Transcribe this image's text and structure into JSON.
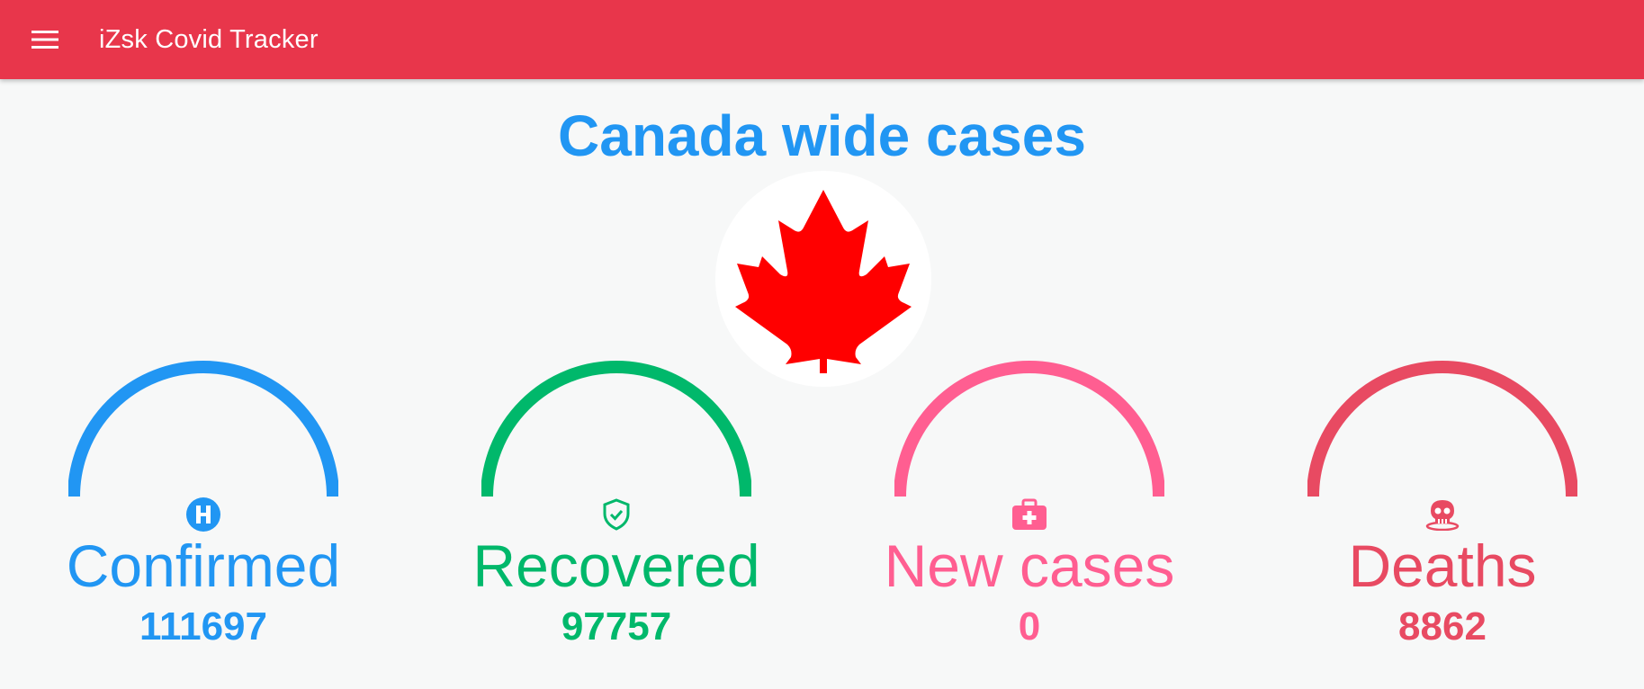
{
  "appbar": {
    "title": "iZsk Covid Tracker",
    "menu_icon": "hamburger-menu-icon",
    "color": "#e8364b"
  },
  "page": {
    "title": "Canada wide cases",
    "flag_icon": "canada-maple-leaf-icon"
  },
  "stats": [
    {
      "label": "Confirmed",
      "value": "111697",
      "icon": "hospital-icon",
      "color": "#2196f3"
    },
    {
      "label": "Recovered",
      "value": "97757",
      "icon": "shield-check-icon",
      "color": "#00b86b"
    },
    {
      "label": "New cases",
      "value": "0",
      "icon": "medical-kit-icon",
      "color": "#ff5e91"
    },
    {
      "label": "Deaths",
      "value": "8862",
      "icon": "skull-icon",
      "color": "#e84a62"
    }
  ]
}
